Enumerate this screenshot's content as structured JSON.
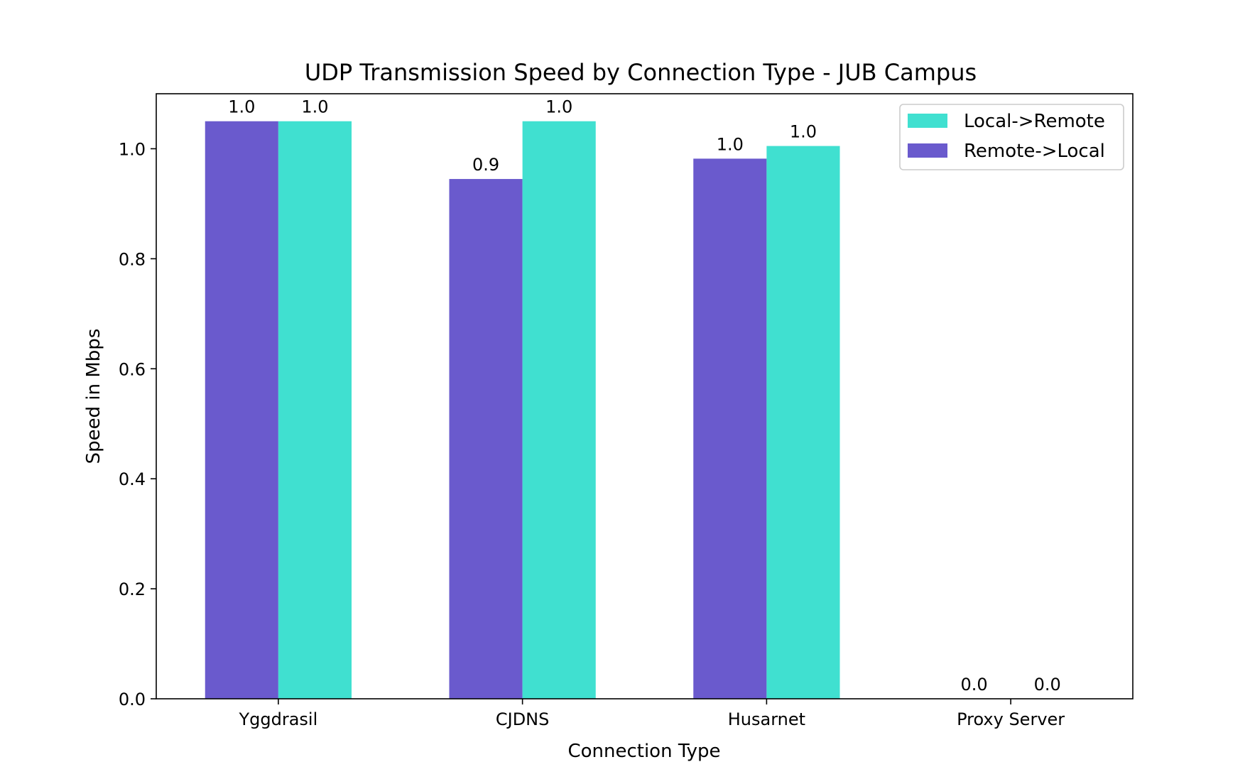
{
  "chart_data": {
    "type": "bar",
    "title": "UDP Transmission Speed by Connection Type - JUB Campus",
    "xlabel": "Connection Type",
    "ylabel": "Speed in Mbps",
    "categories": [
      "Yggdrasil",
      "CJDNS",
      "Husarnet",
      "Proxy Server"
    ],
    "ylim": [
      0,
      1.1
    ],
    "yticks": [
      0.0,
      0.2,
      0.4,
      0.6,
      0.8,
      1.0
    ],
    "ytick_labels": [
      "0.0",
      "0.2",
      "0.4",
      "0.6",
      "0.8",
      "1.0"
    ],
    "grid": false,
    "legend_position": "top-right",
    "series": [
      {
        "name": "Remote->Local",
        "color": "#6a5acd",
        "values": [
          1.05,
          0.945,
          0.982,
          0.0
        ],
        "labels": [
          "1.0",
          "0.9",
          "1.0",
          "0.0"
        ]
      },
      {
        "name": "Local->Remote",
        "color": "#40e0d0",
        "values": [
          1.05,
          1.05,
          1.005,
          0.0
        ],
        "labels": [
          "1.0",
          "1.0",
          "1.0",
          "0.0"
        ]
      }
    ],
    "legend_order": [
      1,
      0
    ]
  }
}
